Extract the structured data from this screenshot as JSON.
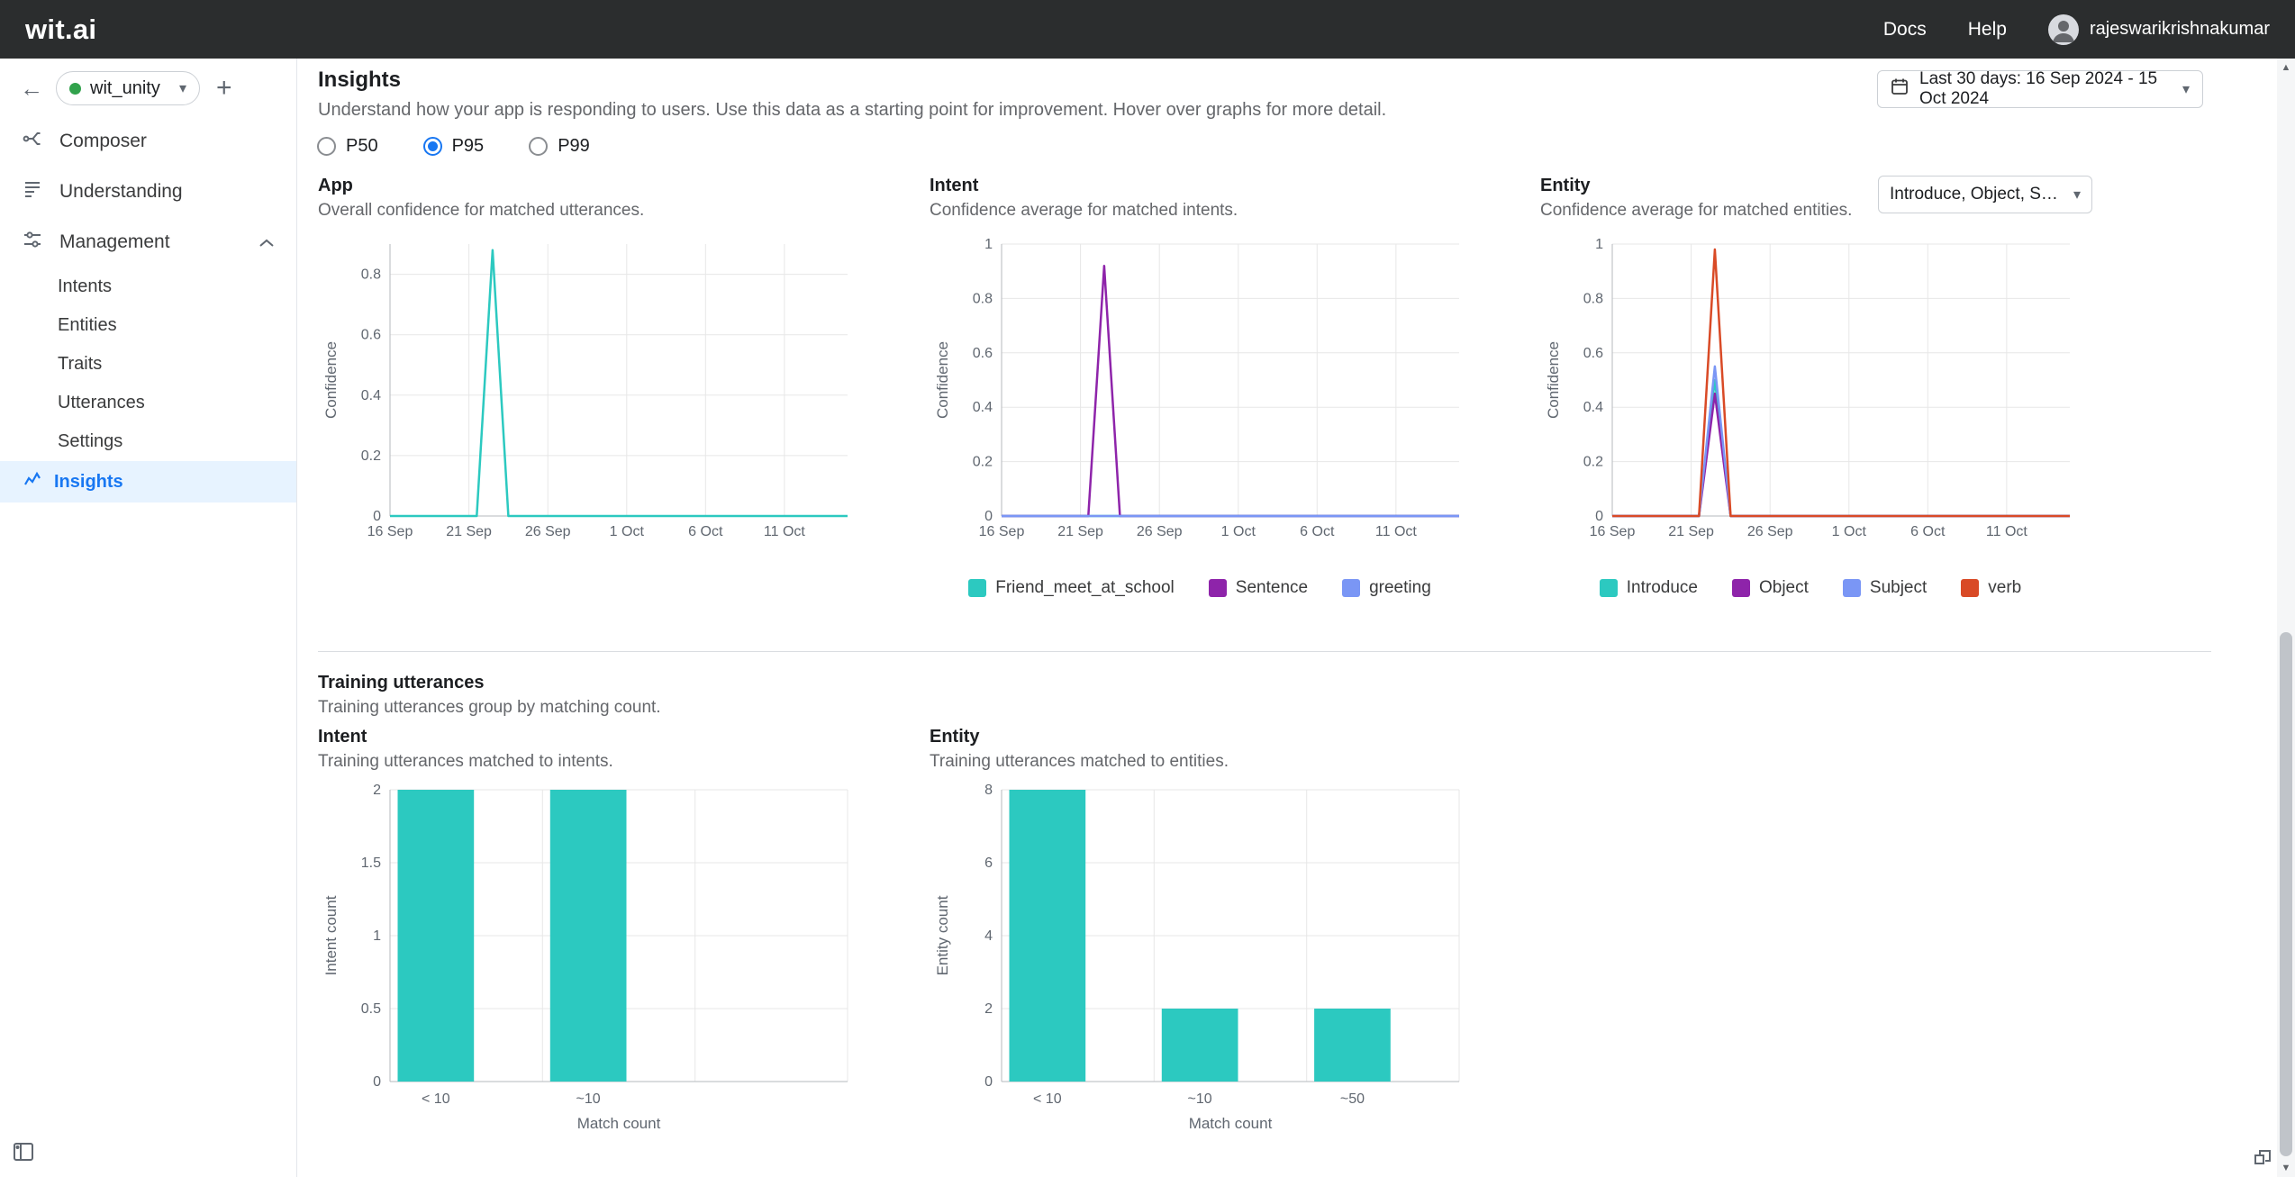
{
  "topbar": {
    "logo": "wit.ai",
    "docs": "Docs",
    "help": "Help",
    "username": "rajeswarikrishnakumar"
  },
  "icons": {
    "back": "←",
    "plus": "+",
    "caret_down": "▾",
    "scroll_up": "▲",
    "scroll_down": "▼"
  },
  "sidebar": {
    "app_name": "wit_unity",
    "composer": "Composer",
    "understanding": "Understanding",
    "management": "Management",
    "management_items": [
      "Intents",
      "Entities",
      "Traits",
      "Utterances",
      "Settings",
      "Insights"
    ]
  },
  "page": {
    "title": "Insights",
    "description": "Understand how your app is responding to users. Use this data as a starting point for improvement. Hover over graphs for more detail.",
    "date_range_label": "Last 30 days: 16 Sep 2024 - 15 Oct 2024",
    "entity_filter_label": "Introduce, Object, Subj..."
  },
  "percentile_options": [
    {
      "label": "P50",
      "selected": false
    },
    {
      "label": "P95",
      "selected": true
    },
    {
      "label": "P99",
      "selected": false
    }
  ],
  "training_section": {
    "title": "Training utterances",
    "subtitle": "Training utterances group by matching count."
  },
  "chart_data": [
    {
      "type": "line",
      "title": "App",
      "subtitle": "Overall confidence for matched utterances.",
      "ylabel": "Confidence",
      "ylim": [
        0,
        0.9
      ],
      "yticks": [
        0,
        0.2,
        0.4,
        0.6,
        0.8
      ],
      "xlim": [
        0,
        29
      ],
      "xticks": [
        {
          "day": 0,
          "label": "16 Sep"
        },
        {
          "day": 5,
          "label": "21 Sep"
        },
        {
          "day": 10,
          "label": "26 Sep"
        },
        {
          "day": 15,
          "label": "1 Oct"
        },
        {
          "day": 20,
          "label": "6 Oct"
        },
        {
          "day": 25,
          "label": "11 Oct"
        }
      ],
      "series": [
        {
          "name": "App",
          "color": "#2cc9c0",
          "points": [
            [
              0,
              0
            ],
            [
              5.5,
              0
            ],
            [
              6.5,
              0.88
            ],
            [
              7.5,
              0
            ],
            [
              29,
              0
            ]
          ]
        }
      ],
      "legend": false
    },
    {
      "type": "line",
      "title": "Intent",
      "subtitle": "Confidence average for matched intents.",
      "ylabel": "Confidence",
      "ylim": [
        0,
        1
      ],
      "yticks": [
        0,
        0.2,
        0.4,
        0.6,
        0.8,
        1
      ],
      "xlim": [
        0,
        29
      ],
      "xticks": [
        {
          "day": 0,
          "label": "16 Sep"
        },
        {
          "day": 5,
          "label": "21 Sep"
        },
        {
          "day": 10,
          "label": "26 Sep"
        },
        {
          "day": 15,
          "label": "1 Oct"
        },
        {
          "day": 20,
          "label": "6 Oct"
        },
        {
          "day": 25,
          "label": "11 Oct"
        }
      ],
      "series": [
        {
          "name": "Friend_meet_at_school",
          "color": "#2cc9c0",
          "points": [
            [
              0,
              0
            ],
            [
              29,
              0
            ]
          ]
        },
        {
          "name": "Sentence",
          "color": "#8e24aa",
          "points": [
            [
              0,
              0
            ],
            [
              5.5,
              0
            ],
            [
              6.5,
              0.92
            ],
            [
              7.5,
              0
            ],
            [
              29,
              0
            ]
          ]
        },
        {
          "name": "greeting",
          "color": "#7a96f5",
          "points": [
            [
              0,
              0
            ],
            [
              29,
              0
            ]
          ]
        }
      ],
      "legend": true
    },
    {
      "type": "line",
      "title": "Entity",
      "subtitle": "Confidence average for matched entities.",
      "ylabel": "Confidence",
      "ylim": [
        0,
        1
      ],
      "yticks": [
        0,
        0.2,
        0.4,
        0.6,
        0.8,
        1
      ],
      "xlim": [
        0,
        29
      ],
      "xticks": [
        {
          "day": 0,
          "label": "16 Sep"
        },
        {
          "day": 5,
          "label": "21 Sep"
        },
        {
          "day": 10,
          "label": "26 Sep"
        },
        {
          "day": 15,
          "label": "1 Oct"
        },
        {
          "day": 20,
          "label": "6 Oct"
        },
        {
          "day": 25,
          "label": "11 Oct"
        }
      ],
      "series": [
        {
          "name": "Introduce",
          "color": "#2cc9c0",
          "points": [
            [
              0,
              0
            ],
            [
              5.5,
              0
            ],
            [
              6.5,
              0.5
            ],
            [
              7.5,
              0
            ],
            [
              29,
              0
            ]
          ]
        },
        {
          "name": "Object",
          "color": "#8e24aa",
          "points": [
            [
              0,
              0
            ],
            [
              5.5,
              0
            ],
            [
              6.5,
              0.45
            ],
            [
              7.5,
              0
            ],
            [
              29,
              0
            ]
          ]
        },
        {
          "name": "Subject",
          "color": "#7a96f5",
          "points": [
            [
              0,
              0
            ],
            [
              5.5,
              0
            ],
            [
              6.5,
              0.55
            ],
            [
              7.5,
              0
            ],
            [
              29,
              0
            ]
          ]
        },
        {
          "name": "verb",
          "color": "#d94a26",
          "points": [
            [
              0,
              0
            ],
            [
              5.5,
              0
            ],
            [
              6.5,
              0.98
            ],
            [
              7.5,
              0
            ],
            [
              29,
              0
            ]
          ]
        }
      ],
      "legend": true
    },
    {
      "type": "bar",
      "title": "Intent",
      "subtitle": "Training utterances matched to intents.",
      "ylabel": "Intent count",
      "xlabel": "Match count",
      "ylim": [
        0,
        2
      ],
      "yticks": [
        0,
        0.5,
        1,
        1.5,
        2
      ],
      "categories": [
        "< 10",
        "~10"
      ],
      "values": [
        2,
        2
      ],
      "bands": 3,
      "color": "#2cc9c0"
    },
    {
      "type": "bar",
      "title": "Entity",
      "subtitle": "Training utterances matched to entities.",
      "ylabel": "Entity count",
      "xlabel": "Match count",
      "ylim": [
        0,
        8
      ],
      "yticks": [
        0,
        2,
        4,
        6,
        8
      ],
      "categories": [
        "< 10",
        "~10",
        "~50"
      ],
      "values": [
        8,
        2,
        2
      ],
      "bands": 3,
      "color": "#2cc9c0"
    }
  ]
}
